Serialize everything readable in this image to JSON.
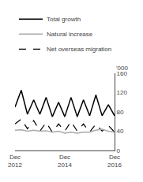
{
  "chart_data": {
    "type": "line",
    "categories": [
      "Dec\n2012",
      null,
      null,
      null,
      null,
      null,
      null,
      null,
      "Dec\n2014",
      null,
      null,
      null,
      null,
      null,
      null,
      null,
      "Dec\n2016"
    ],
    "ylabel": "'000",
    "ylim": [
      0,
      160
    ],
    "yticks": [
      0,
      40,
      80,
      120,
      160
    ],
    "grid": false,
    "legend": "top",
    "series": [
      {
        "name": "Total growth",
        "color": "#000000",
        "line_style": "solid",
        "values": [
          90,
          125,
          75,
          105,
          75,
          110,
          70,
          100,
          70,
          110,
          70,
          105,
          72,
          115,
          72,
          95,
          72
        ]
      },
      {
        "name": "Natural increase",
        "color": "#aaaaaa",
        "line_style": "solid",
        "values": [
          42,
          43,
          40,
          42,
          40,
          41,
          38,
          40,
          36,
          38,
          36,
          38,
          38,
          42,
          44,
          40,
          38
        ]
      },
      {
        "name": "Net overseas migration",
        "color": "#000000",
        "line_style": "dashed",
        "values": [
          55,
          65,
          45,
          62,
          40,
          58,
          38,
          55,
          40,
          60,
          40,
          55,
          38,
          55,
          40,
          52,
          38
        ]
      }
    ]
  }
}
